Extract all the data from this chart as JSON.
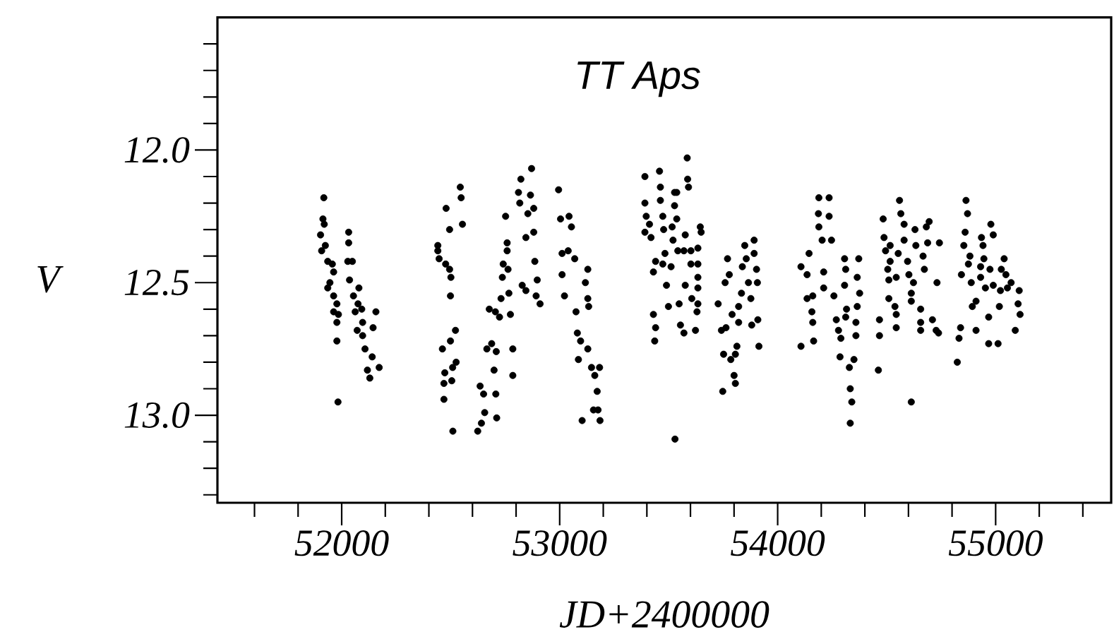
{
  "chart_data": {
    "type": "scatter",
    "title": "TT Aps",
    "xlabel": "JD+2400000",
    "ylabel": "V",
    "color": "#000000",
    "marker": "circle",
    "xlim": [
      51430,
      55530
    ],
    "ylim": [
      13.33,
      11.5
    ],
    "xticks": [
      {
        "value": 51600,
        "label": null
      },
      {
        "value": 51800,
        "label": null
      },
      52000,
      {
        "value": 52200,
        "label": null
      },
      {
        "value": 52400,
        "label": null
      },
      {
        "value": 52600,
        "label": null
      },
      {
        "value": 52800,
        "label": null
      },
      53000,
      {
        "value": 53200,
        "label": null
      },
      {
        "value": 53400,
        "label": null
      },
      {
        "value": 53600,
        "label": null
      },
      {
        "value": 53800,
        "label": null
      },
      54000,
      {
        "value": 54200,
        "label": null
      },
      {
        "value": 54400,
        "label": null
      },
      {
        "value": 54600,
        "label": null
      },
      {
        "value": 54800,
        "label": null
      },
      55000,
      {
        "value": 55200,
        "label": null
      },
      {
        "value": 55400,
        "label": null
      }
    ],
    "yticks": [
      {
        "value": 11.6,
        "label": null
      },
      {
        "value": 11.7,
        "label": null
      },
      {
        "value": 11.8,
        "label": null
      },
      {
        "value": 11.9,
        "label": null
      },
      {
        "value": 12.0,
        "label": "12.0"
      },
      {
        "value": 12.1,
        "label": null
      },
      {
        "value": 12.2,
        "label": null
      },
      {
        "value": 12.3,
        "label": null
      },
      {
        "value": 12.4,
        "label": null
      },
      {
        "value": 12.5,
        "label": "12.5"
      },
      {
        "value": 12.6,
        "label": null
      },
      {
        "value": 12.7,
        "label": null
      },
      {
        "value": 12.8,
        "label": null
      },
      {
        "value": 12.9,
        "label": null
      },
      {
        "value": 13.0,
        "label": "13.0"
      },
      {
        "value": 13.1,
        "label": null
      },
      {
        "value": 13.2,
        "label": null
      },
      {
        "value": 13.3,
        "label": null
      }
    ],
    "x": [
      51918,
      51914,
      51920,
      51903,
      51925,
      51908,
      51936,
      51957,
      51963,
      51946,
      51936,
      51963,
      51978,
      51963,
      51985,
      51978,
      51978,
      51983,
      52032,
      52032,
      52028,
      52049,
      52036,
      52079,
      52054,
      52075,
      52092,
      52062,
      52096,
      52071,
      52096,
      52107,
      52140,
      52118,
      52129,
      52157,
      52144,
      52172,
      52441,
      52441,
      52447,
      52477,
      52495,
      52501,
      52499,
      52479,
      52495,
      52544,
      52548,
      52554,
      52522,
      52499,
      52462,
      52473,
      52509,
      52525,
      52469,
      52505,
      52469,
      52510,
      52624,
      52641,
      52656,
      52651,
      52635,
      52707,
      52711,
      52699,
      52666,
      52688,
      52709,
      52677,
      52705,
      52724,
      52774,
      52731,
      52767,
      52737,
      52763,
      52741,
      52759,
      52759,
      52752,
      52785,
      52785,
      52828,
      52845,
      52817,
      52811,
      52822,
      52871,
      52866,
      52881,
      52854,
      52845,
      52881,
      52886,
      52897,
      52892,
      52910,
      52995,
      53004,
      53043,
      53054,
      53011,
      53039,
      53069,
      53011,
      53022,
      53075,
      53118,
      53129,
      53129,
      53133,
      53081,
      53096,
      53129,
      53086,
      53103,
      53146,
      53161,
      53172,
      53176,
      53185,
      53155,
      53183,
      53391,
      53391,
      53397,
      53412,
      53391,
      53419,
      53458,
      53462,
      53462,
      53473,
      53477,
      53527,
      53537,
      53527,
      53537,
      53516,
      53520,
      53585,
      53587,
      53591,
      53576,
      53645,
      53649,
      53634,
      53602,
      53570,
      53542,
      53483,
      53440,
      53430,
      53473,
      53511,
      53602,
      53634,
      53634,
      53634,
      53634,
      53630,
      53606,
      53576,
      53490,
      53499,
      53548,
      53430,
      53440,
      53436,
      53554,
      53570,
      53623,
      53529,
      53727,
      53759,
      53770,
      53778,
      53791,
      53821,
      53742,
      53763,
      53752,
      53785,
      53813,
      53806,
      53800,
      53806,
      53748,
      53821,
      53834,
      53838,
      53849,
      53856,
      53866,
      53877,
      53881,
      53892,
      53892,
      53903,
      53907,
      53909,
      53914,
      54107,
      54165,
      54107,
      54135,
      54144,
      54161,
      54135,
      54157,
      54161,
      54189,
      54236,
      54187,
      54189,
      54236,
      54204,
      54247,
      54211,
      54211,
      54258,
      54307,
      54312,
      54372,
      54365,
      54376,
      54307,
      54316,
      54269,
      54279,
      54290,
      54312,
      54359,
      54359,
      54365,
      54286,
      54350,
      54329,
      54333,
      54340,
      54333,
      54467,
      54467,
      54462,
      54484,
      54488,
      54495,
      54516,
      54505,
      54510,
      54510,
      54516,
      54538,
      54544,
      54544,
      54559,
      54565,
      54553,
      54544,
      54580,
      54580,
      54596,
      54602,
      54630,
      54634,
      54613,
      54613,
      54623,
      54613,
      54656,
      54656,
      54656,
      54673,
      54667,
      54682,
      54695,
      54688,
      54731,
      54742,
      54710,
      54727,
      54738,
      54824,
      54832,
      54839,
      54843,
      54854,
      54860,
      54871,
      54864,
      54875,
      54882,
      54888,
      54893,
      54910,
      54910,
      54931,
      54931,
      54935,
      54942,
      54946,
      54953,
      54968,
      54968,
      54978,
      54989,
      54974,
      54989,
      55011,
      55017,
      55022,
      55026,
      55039,
      55047,
      55054,
      55071,
      55090,
      55103,
      55112,
      55108
    ],
    "values": [
      12.18,
      12.26,
      12.28,
      12.32,
      12.36,
      12.38,
      12.42,
      12.43,
      12.46,
      12.5,
      12.52,
      12.55,
      12.58,
      12.61,
      12.62,
      12.65,
      12.72,
      12.95,
      12.31,
      12.35,
      12.42,
      12.42,
      12.49,
      12.52,
      12.55,
      12.58,
      12.6,
      12.61,
      12.65,
      12.68,
      12.7,
      12.75,
      12.78,
      12.83,
      12.86,
      12.61,
      12.67,
      12.82,
      12.36,
      12.38,
      12.41,
      12.43,
      12.45,
      12.48,
      12.55,
      12.22,
      12.3,
      12.14,
      12.18,
      12.28,
      12.68,
      12.72,
      12.75,
      12.84,
      12.82,
      12.8,
      12.88,
      12.87,
      12.94,
      13.06,
      13.06,
      13.03,
      12.99,
      12.92,
      12.89,
      12.92,
      13.01,
      12.83,
      12.75,
      12.73,
      12.76,
      12.6,
      12.61,
      12.63,
      12.62,
      12.56,
      12.54,
      12.48,
      12.45,
      12.43,
      12.38,
      12.35,
      12.25,
      12.75,
      12.85,
      12.51,
      12.53,
      12.2,
      12.16,
      12.11,
      12.07,
      12.17,
      12.22,
      12.24,
      12.33,
      12.31,
      12.42,
      12.49,
      12.55,
      12.58,
      12.15,
      12.26,
      12.25,
      12.29,
      12.39,
      12.38,
      12.41,
      12.47,
      12.55,
      12.61,
      12.5,
      12.45,
      12.56,
      12.59,
      12.69,
      12.72,
      12.75,
      12.79,
      13.02,
      12.82,
      12.85,
      12.91,
      12.98,
      13.02,
      12.98,
      12.82,
      12.1,
      12.2,
      12.25,
      12.28,
      12.31,
      12.33,
      12.08,
      12.14,
      12.19,
      12.25,
      12.3,
      12.16,
      12.16,
      12.21,
      12.26,
      12.29,
      12.34,
      12.03,
      12.11,
      12.14,
      12.32,
      12.29,
      12.31,
      12.37,
      12.38,
      12.38,
      12.38,
      12.39,
      12.42,
      12.46,
      12.43,
      12.44,
      12.43,
      12.43,
      12.48,
      12.52,
      12.58,
      12.61,
      12.56,
      12.51,
      12.51,
      12.59,
      12.58,
      12.62,
      12.67,
      12.72,
      12.66,
      12.69,
      12.68,
      13.09,
      12.58,
      12.5,
      12.41,
      12.47,
      12.62,
      12.59,
      12.68,
      12.67,
      12.77,
      12.79,
      12.74,
      12.77,
      12.85,
      12.88,
      12.91,
      12.65,
      12.54,
      12.44,
      12.36,
      12.41,
      12.5,
      12.56,
      12.66,
      12.34,
      12.39,
      12.45,
      12.5,
      12.64,
      12.74,
      12.74,
      12.72,
      12.44,
      12.47,
      12.39,
      12.55,
      12.56,
      12.61,
      12.65,
      12.18,
      12.18,
      12.24,
      12.29,
      12.25,
      12.34,
      12.34,
      12.46,
      12.52,
      12.55,
      12.41,
      12.45,
      12.41,
      12.48,
      12.54,
      12.51,
      12.6,
      12.64,
      12.68,
      12.71,
      12.63,
      12.65,
      12.7,
      12.59,
      12.78,
      12.79,
      12.82,
      12.9,
      12.95,
      13.03,
      12.64,
      12.7,
      12.83,
      12.26,
      12.33,
      12.38,
      12.36,
      12.45,
      12.49,
      12.56,
      12.42,
      12.59,
      12.62,
      12.67,
      12.19,
      12.24,
      12.39,
      12.48,
      12.28,
      12.34,
      12.42,
      12.47,
      12.3,
      12.36,
      12.54,
      12.57,
      12.5,
      12.95,
      12.6,
      12.65,
      12.68,
      12.45,
      12.4,
      12.29,
      12.27,
      12.35,
      12.5,
      12.35,
      12.64,
      12.68,
      12.69,
      12.8,
      12.71,
      12.67,
      12.47,
      12.36,
      12.31,
      12.24,
      12.19,
      12.43,
      12.4,
      12.5,
      12.59,
      12.57,
      12.68,
      12.48,
      12.44,
      12.33,
      12.36,
      12.41,
      12.52,
      12.63,
      12.73,
      12.28,
      12.32,
      12.45,
      12.51,
      12.73,
      12.59,
      12.53,
      12.45,
      12.41,
      12.47,
      12.52,
      12.5,
      12.68,
      12.58,
      12.62,
      12.53
    ]
  }
}
